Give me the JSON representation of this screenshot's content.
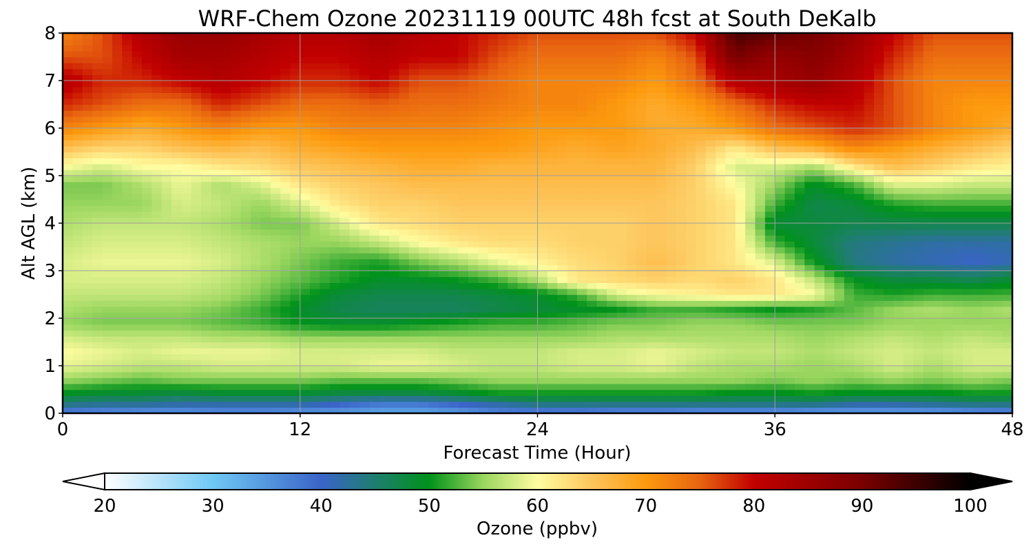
{
  "chart_data": {
    "type": "heatmap",
    "title": "WRF-Chem Ozone  20231119 00UTC 48h fcst at South DeKalb",
    "xlabel": "Forecast Time (Hour)",
    "ylabel": "Alt AGL (km)",
    "xlim": [
      0,
      48
    ],
    "ylim": [
      0,
      8
    ],
    "xticks": [
      "0",
      "12",
      "24",
      "36",
      "48"
    ],
    "yticks": [
      "0",
      "1",
      "2",
      "3",
      "4",
      "5",
      "6",
      "7",
      "8"
    ],
    "grid": true,
    "colorbar": {
      "label": "Ozone  (ppbv)",
      "ticks": [
        "20",
        "30",
        "40",
        "50",
        "60",
        "70",
        "80",
        "90",
        "100"
      ],
      "range": [
        20,
        100
      ],
      "extend": "both",
      "stops": [
        {
          "v": 20,
          "c": "#ffffff"
        },
        {
          "v": 30,
          "c": "#6fc8f5"
        },
        {
          "v": 40,
          "c": "#3a64c8"
        },
        {
          "v": 45,
          "c": "#1e7e6e"
        },
        {
          "v": 50,
          "c": "#00921a"
        },
        {
          "v": 55,
          "c": "#9ad65f"
        },
        {
          "v": 60,
          "c": "#fffda0"
        },
        {
          "v": 65,
          "c": "#fdc65c"
        },
        {
          "v": 70,
          "c": "#fd9a0e"
        },
        {
          "v": 75,
          "c": "#e86410"
        },
        {
          "v": 80,
          "c": "#c20000"
        },
        {
          "v": 90,
          "c": "#7a0000"
        },
        {
          "v": 100,
          "c": "#000000"
        }
      ]
    },
    "x": [
      0,
      2,
      4,
      6,
      8,
      10,
      12,
      14,
      16,
      18,
      20,
      22,
      24,
      26,
      28,
      30,
      32,
      34,
      36,
      38,
      40,
      42,
      44,
      46,
      48
    ],
    "y": [
      0,
      0.2,
      0.4,
      0.7,
      1.0,
      1.3,
      1.6,
      1.9,
      2.2,
      2.5,
      2.8,
      3.2,
      3.6,
      4.0,
      4.4,
      4.8,
      5.2,
      5.6,
      6.0,
      6.5,
      7.0,
      7.5,
      8.0
    ],
    "z": [
      [
        36,
        35,
        34,
        34,
        35,
        35,
        34,
        34,
        33,
        33,
        34,
        36,
        36,
        36,
        35,
        35,
        34,
        34,
        34,
        33,
        33,
        33,
        33,
        34,
        35
      ],
      [
        44,
        43,
        43,
        42,
        42,
        42,
        42,
        40,
        38,
        38,
        40,
        42,
        44,
        44,
        44,
        44,
        44,
        44,
        44,
        44,
        42,
        42,
        43,
        44,
        44
      ],
      [
        49,
        48,
        48,
        47,
        48,
        48,
        48,
        47,
        47,
        47,
        48,
        50,
        50,
        50,
        50,
        50,
        50,
        49,
        49,
        50,
        49,
        49,
        49,
        50,
        50
      ],
      [
        55,
        54,
        53,
        54,
        54,
        54,
        54,
        53,
        53,
        53,
        54,
        55,
        55,
        55,
        55,
        55,
        55,
        55,
        54,
        55,
        54,
        55,
        54,
        55,
        54
      ],
      [
        59,
        58,
        57,
        57,
        58,
        58,
        58,
        58,
        59,
        59,
        58,
        57,
        57,
        58,
        58,
        59,
        57,
        56,
        56,
        55,
        56,
        58,
        56,
        58,
        58
      ],
      [
        60,
        59,
        58,
        59,
        59,
        59,
        58,
        58,
        58,
        58,
        57,
        57,
        57,
        58,
        58,
        59,
        58,
        57,
        57,
        56,
        57,
        58,
        57,
        58,
        58
      ],
      [
        58,
        57,
        57,
        57,
        56,
        56,
        55,
        55,
        55,
        55,
        55,
        55,
        55,
        55,
        56,
        56,
        56,
        56,
        56,
        55,
        56,
        57,
        56,
        57,
        56
      ],
      [
        55,
        54,
        54,
        54,
        53,
        52,
        50,
        49,
        49,
        50,
        51,
        52,
        52,
        53,
        54,
        54,
        55,
        55,
        54,
        54,
        54,
        55,
        55,
        55,
        55
      ],
      [
        56,
        55,
        55,
        55,
        54,
        52,
        49,
        47,
        46,
        46,
        46,
        47,
        48,
        49,
        50,
        52,
        52,
        51,
        50,
        51,
        53,
        55,
        56,
        55,
        56
      ],
      [
        57,
        57,
        57,
        57,
        56,
        54,
        51,
        48,
        47,
        47,
        47,
        48,
        49,
        52,
        58,
        60,
        61,
        62,
        62,
        60,
        52,
        51,
        52,
        52,
        52
      ],
      [
        58,
        58,
        58,
        58,
        57,
        55,
        53,
        51,
        49,
        49,
        50,
        52,
        56,
        62,
        63,
        64,
        63,
        64,
        62,
        57,
        50,
        48,
        48,
        47,
        49
      ],
      [
        58,
        59,
        59,
        59,
        58,
        56,
        54,
        52,
        51,
        54,
        56,
        59,
        61,
        63,
        64,
        66,
        64,
        62,
        58,
        50,
        44,
        42,
        41,
        40,
        41
      ],
      [
        57,
        58,
        58,
        58,
        57,
        56,
        55,
        55,
        57,
        60,
        62,
        63,
        63,
        64,
        64,
        65,
        64,
        62,
        52,
        48,
        44,
        43,
        42,
        42,
        42
      ],
      [
        56,
        57,
        57,
        57,
        56,
        54,
        54,
        58,
        62,
        63,
        64,
        64,
        64,
        64,
        64,
        65,
        64,
        62,
        48,
        48,
        47,
        47,
        47,
        47,
        47
      ],
      [
        55,
        55,
        55,
        58,
        57,
        55,
        58,
        62,
        64,
        64,
        65,
        65,
        65,
        65,
        65,
        65,
        64,
        62,
        52,
        47,
        48,
        51,
        52,
        52,
        52
      ],
      [
        54,
        54,
        56,
        59,
        56,
        58,
        62,
        64,
        65,
        66,
        66,
        66,
        66,
        66,
        66,
        66,
        64,
        60,
        55,
        49,
        52,
        58,
        58,
        57,
        57
      ],
      [
        60,
        58,
        60,
        60,
        62,
        63,
        65,
        66,
        67,
        68,
        68,
        67,
        67,
        67,
        67,
        67,
        64,
        58,
        58,
        56,
        62,
        66,
        64,
        62,
        61
      ],
      [
        66,
        64,
        64,
        66,
        67,
        66,
        68,
        69,
        70,
        70,
        70,
        70,
        69,
        68,
        69,
        68,
        66,
        62,
        66,
        68,
        72,
        70,
        68,
        66,
        64
      ],
      [
        72,
        70,
        68,
        70,
        72,
        70,
        70,
        72,
        72,
        72,
        72,
        71,
        70,
        70,
        70,
        68,
        68,
        70,
        74,
        76,
        78,
        76,
        72,
        70,
        68
      ],
      [
        78,
        76,
        74,
        74,
        78,
        76,
        74,
        74,
        75,
        74,
        74,
        73,
        72,
        72,
        70,
        68,
        70,
        74,
        78,
        80,
        80,
        76,
        72,
        70,
        70
      ],
      [
        82,
        78,
        78,
        80,
        82,
        80,
        78,
        78,
        80,
        76,
        76,
        74,
        72,
        72,
        72,
        70,
        74,
        82,
        84,
        86,
        82,
        76,
        72,
        72,
        72
      ],
      [
        76,
        76,
        80,
        84,
        84,
        82,
        80,
        80,
        82,
        80,
        80,
        76,
        74,
        74,
        74,
        72,
        76,
        90,
        86,
        88,
        84,
        78,
        74,
        74,
        74
      ],
      [
        72,
        76,
        82,
        86,
        86,
        84,
        82,
        82,
        84,
        82,
        80,
        78,
        76,
        76,
        76,
        76,
        80,
        94,
        92,
        90,
        86,
        80,
        76,
        76,
        76
      ]
    ]
  }
}
